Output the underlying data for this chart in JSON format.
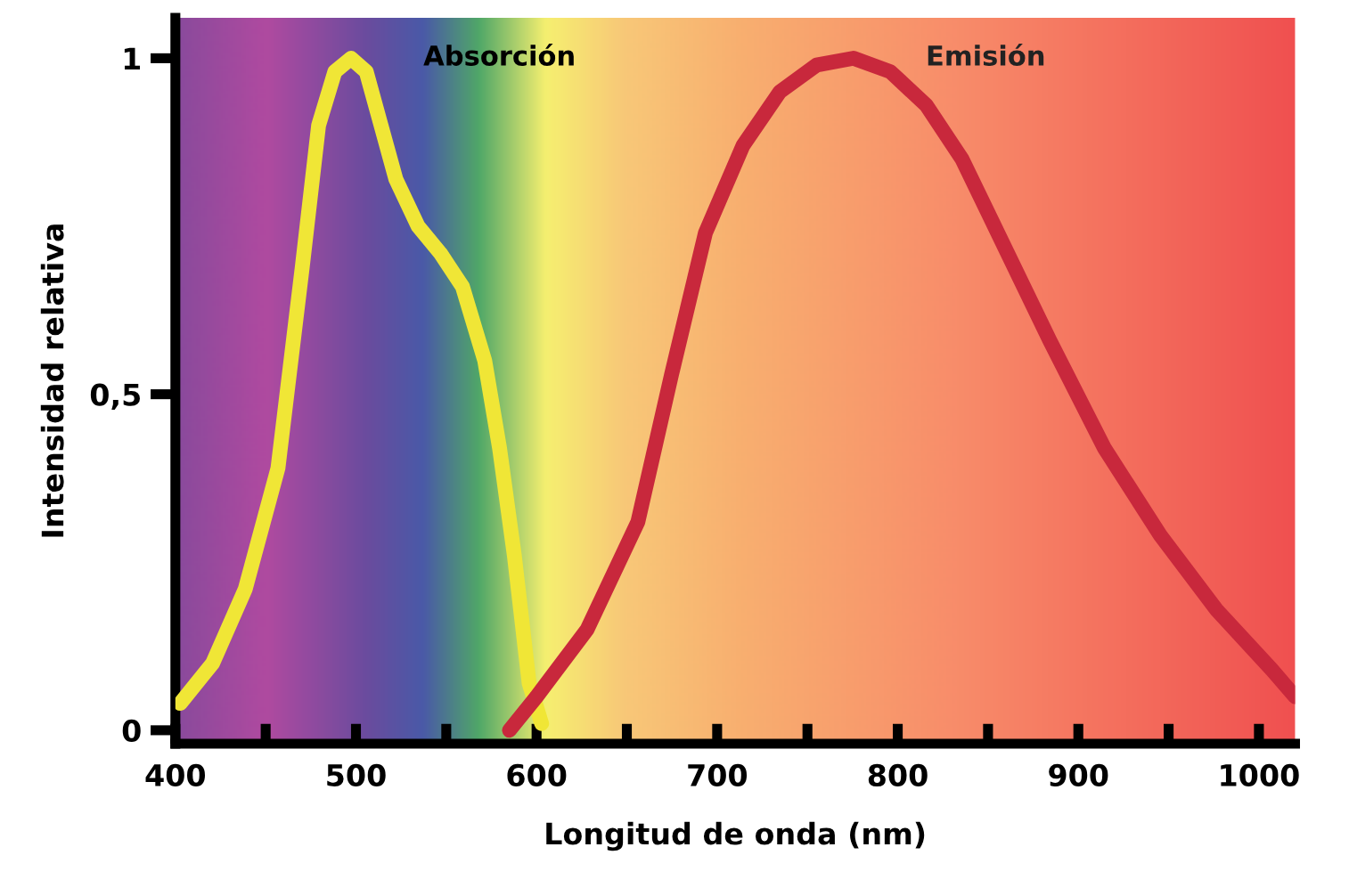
{
  "chart_data": {
    "type": "line",
    "xlabel": "Longitud de onda (nm)",
    "ylabel": "Intensidad relativa",
    "xlim": [
      400,
      1020
    ],
    "ylim": [
      -0.02,
      1.06
    ],
    "xticks": [
      400,
      {
        "value": 450,
        "label": null
      },
      500,
      {
        "value": 550,
        "label": null
      },
      600,
      {
        "value": 650,
        "label": null
      },
      700,
      {
        "value": 750,
        "label": null
      },
      800,
      {
        "value": 850,
        "label": null
      },
      900,
      {
        "value": 950,
        "label": null
      },
      1000
    ],
    "yticks": [
      0,
      {
        "value": 0.5,
        "label": "0,5"
      },
      1
    ],
    "grid": false,
    "legend": false,
    "marker": "none",
    "line_style": "solid",
    "series": [
      {
        "name": "Absorción",
        "color": "#f0e636",
        "x": [
          402.7,
          420.7,
          438.7,
          456.8,
          470.3,
          479.3,
          488.3,
          497.3,
          505.7,
          513.9,
          522.1,
          534.4,
          546.7,
          559,
          571.3,
          579.5,
          587.7,
          595.9,
          602.8
        ],
        "values": [
          0.04,
          0.1,
          0.21,
          0.39,
          0.69,
          0.9,
          0.98,
          1.0,
          0.98,
          0.9,
          0.82,
          0.75,
          0.71,
          0.66,
          0.55,
          0.42,
          0.26,
          0.07,
          0.01
        ]
      },
      {
        "name": "Emisión",
        "color": "#c8283c",
        "x": [
          585,
          600,
          628,
          656.1,
          674.8,
          693.5,
          714.3,
          734.7,
          755.1,
          775.5,
          795.9,
          815.8,
          835.6,
          855.4,
          884.2,
          914.4,
          945.4,
          976.3,
          1007.2,
          1020
        ],
        "values": [
          0,
          0.05,
          0.15,
          0.31,
          0.53,
          0.74,
          0.87,
          0.95,
          0.99,
          1.0,
          0.98,
          0.93,
          0.85,
          0.74,
          0.58,
          0.42,
          0.29,
          0.18,
          0.09,
          0.05
        ]
      }
    ]
  }
}
